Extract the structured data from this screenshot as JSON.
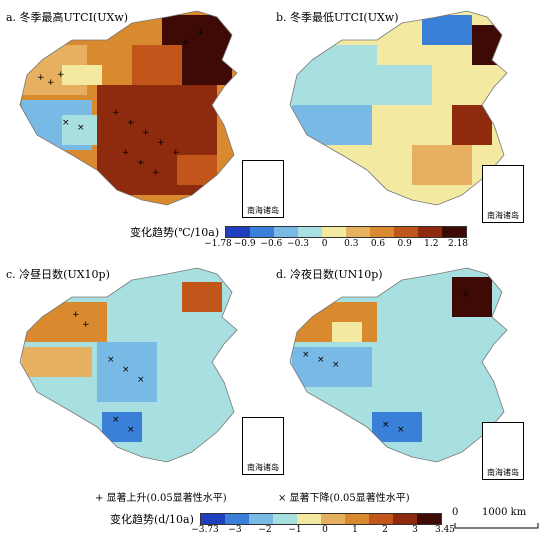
{
  "panels": [
    {
      "id": "a",
      "title": "a. 冬季最高UTCI(UXw)"
    },
    {
      "id": "b",
      "title": "b. 冬季最低UTCI(UXw)"
    },
    {
      "id": "c",
      "title": "c. 冷昼日数(UX10p)"
    },
    {
      "id": "d",
      "title": "d. 冷夜日数(UN10p)"
    }
  ],
  "inset_label": "南海诸岛",
  "legend_top": {
    "title": "变化趋势(℃/10a)",
    "colors": [
      "#1f3fbf",
      "#3a7fd8",
      "#79b9e6",
      "#a8dfe0",
      "#f3e9a0",
      "#e6b060",
      "#d98a2e",
      "#c2561a",
      "#8e2a0e",
      "#3d0a05"
    ],
    "ticks": [
      "−1.78",
      "−0.9",
      "−0.6",
      "−0.3",
      "0",
      "0.3",
      "0.6",
      "0.9",
      "1.2",
      "2.18"
    ]
  },
  "legend_bottom": {
    "title": "变化趋势(d/10a)",
    "colors": [
      "#1f3fbf",
      "#3a7fd8",
      "#79b9e6",
      "#a8dfe0",
      "#f3e9a0",
      "#e6b060",
      "#d98a2e",
      "#c2561a",
      "#8e2a0e",
      "#3d0a05"
    ],
    "ticks": [
      "−3.73",
      "−3",
      "−2",
      "−1",
      "0",
      "1",
      "2",
      "3",
      "3.45"
    ]
  },
  "significance": {
    "up": "+ 显著上升(0.05显著性水平)",
    "down": "× 显著下降(0.05显著性水平)"
  },
  "scale": {
    "start": "0",
    "end": "1000 km"
  }
}
